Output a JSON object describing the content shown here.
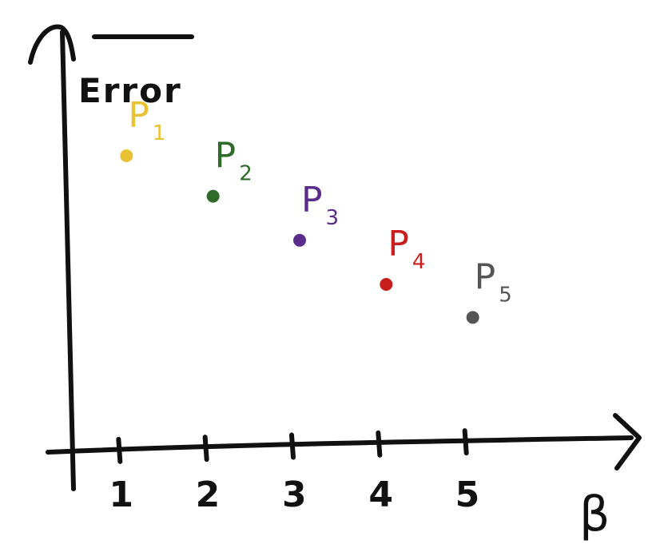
{
  "chart_data": {
    "type": "scatter",
    "ylabel": "Error",
    "xlabel": "β",
    "x_ticks": [
      "1",
      "2",
      "3",
      "4",
      "5"
    ],
    "xlim": [
      0,
      6
    ],
    "ylim": [
      0,
      10
    ],
    "grid": false,
    "points": [
      {
        "label": "P",
        "sub": "1",
        "x": 1,
        "y": 7.5,
        "color": "#e9c234"
      },
      {
        "label": "P",
        "sub": "2",
        "x": 2,
        "y": 6.4,
        "color": "#2f6b2a"
      },
      {
        "label": "P",
        "sub": "3",
        "x": 3,
        "y": 5.2,
        "color": "#5a2d8c"
      },
      {
        "label": "P",
        "sub": "4",
        "x": 4,
        "y": 4.0,
        "color": "#c81e1e"
      },
      {
        "label": "P",
        "sub": "5",
        "x": 5,
        "y": 3.1,
        "color": "#555555"
      }
    ]
  }
}
